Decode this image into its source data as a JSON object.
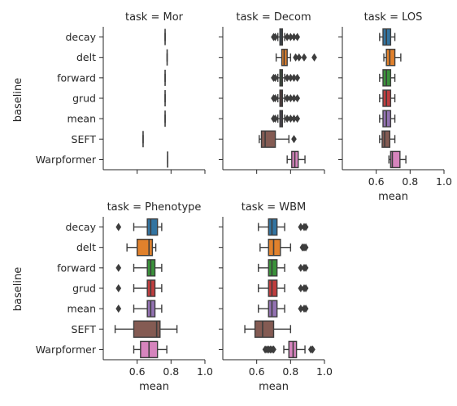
{
  "chart_data": {
    "type": "boxplot",
    "ylabel": "baseline",
    "xlabel": "mean",
    "xlim": [
      0.4,
      1.0
    ],
    "xticks": [
      "0.6",
      "0.8",
      "1.0"
    ],
    "categories": [
      "decay",
      "delt",
      "forward",
      "grud",
      "mean",
      "SEFT",
      "Warpformer"
    ],
    "colors": [
      "#3274a1",
      "#e1812c",
      "#3a923a",
      "#c03d3e",
      "#9372b2",
      "#845b53",
      "#d684bd"
    ],
    "panels": [
      {
        "title": "task = Mor",
        "show_xticks": false,
        "boxes": [
          {
            "q1": 0.765,
            "med": 0.765,
            "q3": 0.765,
            "wlo": 0.765,
            "whi": 0.765,
            "outliers": []
          },
          {
            "q1": 0.777,
            "med": 0.777,
            "q3": 0.777,
            "wlo": 0.777,
            "whi": 0.777,
            "outliers": []
          },
          {
            "q1": 0.765,
            "med": 0.765,
            "q3": 0.765,
            "wlo": 0.765,
            "whi": 0.765,
            "outliers": []
          },
          {
            "q1": 0.765,
            "med": 0.765,
            "q3": 0.765,
            "wlo": 0.765,
            "whi": 0.765,
            "outliers": []
          },
          {
            "q1": 0.765,
            "med": 0.765,
            "q3": 0.765,
            "wlo": 0.765,
            "whi": 0.765,
            "outliers": []
          },
          {
            "q1": 0.635,
            "med": 0.635,
            "q3": 0.635,
            "wlo": 0.635,
            "whi": 0.635,
            "outliers": []
          },
          {
            "q1": 0.78,
            "med": 0.78,
            "q3": 0.78,
            "wlo": 0.78,
            "whi": 0.78,
            "outliers": []
          }
        ]
      },
      {
        "title": "task = Decom",
        "show_xticks": false,
        "boxes": [
          {
            "q1": 0.737,
            "med": 0.745,
            "q3": 0.752,
            "wlo": 0.725,
            "whi": 0.765,
            "outliers": [
              0.7,
              0.71,
              0.78,
              0.8,
              0.82,
              0.84
            ]
          },
          {
            "q1": 0.748,
            "med": 0.762,
            "q3": 0.78,
            "wlo": 0.715,
            "whi": 0.8,
            "outliers": [
              0.83,
              0.85,
              0.88,
              0.94
            ]
          },
          {
            "q1": 0.737,
            "med": 0.745,
            "q3": 0.752,
            "wlo": 0.725,
            "whi": 0.765,
            "outliers": [
              0.7,
              0.71,
              0.78,
              0.8,
              0.82,
              0.84
            ]
          },
          {
            "q1": 0.737,
            "med": 0.745,
            "q3": 0.752,
            "wlo": 0.725,
            "whi": 0.765,
            "outliers": [
              0.7,
              0.71,
              0.78,
              0.8,
              0.82,
              0.84
            ]
          },
          {
            "q1": 0.737,
            "med": 0.745,
            "q3": 0.752,
            "wlo": 0.725,
            "whi": 0.765,
            "outliers": [
              0.7,
              0.71,
              0.78,
              0.8,
              0.82,
              0.84
            ]
          },
          {
            "q1": 0.628,
            "med": 0.65,
            "q3": 0.71,
            "wlo": 0.615,
            "whi": 0.79,
            "outliers": [
              0.82
            ]
          },
          {
            "q1": 0.807,
            "med": 0.825,
            "q3": 0.845,
            "wlo": 0.78,
            "whi": 0.885,
            "outliers": []
          }
        ]
      },
      {
        "title": "task = LOS",
        "show_xticks": true,
        "boxes": [
          {
            "q1": 0.64,
            "med": 0.66,
            "q3": 0.685,
            "wlo": 0.62,
            "whi": 0.71,
            "outliers": []
          },
          {
            "q1": 0.66,
            "med": 0.68,
            "q3": 0.71,
            "wlo": 0.645,
            "whi": 0.745,
            "outliers": []
          },
          {
            "q1": 0.64,
            "med": 0.66,
            "q3": 0.685,
            "wlo": 0.62,
            "whi": 0.71,
            "outliers": []
          },
          {
            "q1": 0.64,
            "med": 0.66,
            "q3": 0.685,
            "wlo": 0.62,
            "whi": 0.71,
            "outliers": []
          },
          {
            "q1": 0.64,
            "med": 0.66,
            "q3": 0.685,
            "wlo": 0.62,
            "whi": 0.71,
            "outliers": []
          },
          {
            "q1": 0.635,
            "med": 0.65,
            "q3": 0.68,
            "wlo": 0.62,
            "whi": 0.71,
            "outliers": []
          },
          {
            "q1": 0.685,
            "med": 0.695,
            "q3": 0.74,
            "wlo": 0.675,
            "whi": 0.775,
            "outliers": []
          }
        ]
      },
      {
        "title": "task = Phenotype",
        "show_xticks": true,
        "boxes": [
          {
            "q1": 0.66,
            "med": 0.68,
            "q3": 0.72,
            "wlo": 0.58,
            "whi": 0.745,
            "outliers": [
              0.49
            ]
          },
          {
            "q1": 0.6,
            "med": 0.67,
            "q3": 0.69,
            "wlo": 0.54,
            "whi": 0.71,
            "outliers": []
          },
          {
            "q1": 0.66,
            "med": 0.68,
            "q3": 0.705,
            "wlo": 0.58,
            "whi": 0.745,
            "outliers": [
              0.49
            ]
          },
          {
            "q1": 0.66,
            "med": 0.68,
            "q3": 0.705,
            "wlo": 0.58,
            "whi": 0.745,
            "outliers": [
              0.49
            ]
          },
          {
            "q1": 0.66,
            "med": 0.68,
            "q3": 0.705,
            "wlo": 0.58,
            "whi": 0.745,
            "outliers": [
              0.49
            ]
          },
          {
            "q1": 0.58,
            "med": 0.715,
            "q3": 0.735,
            "wlo": 0.47,
            "whi": 0.835,
            "outliers": []
          },
          {
            "q1": 0.62,
            "med": 0.67,
            "q3": 0.72,
            "wlo": 0.58,
            "whi": 0.775,
            "outliers": []
          }
        ]
      },
      {
        "title": "task = WBM",
        "show_xticks": true,
        "boxes": [
          {
            "q1": 0.67,
            "med": 0.69,
            "q3": 0.72,
            "wlo": 0.61,
            "whi": 0.765,
            "outliers": [
              0.86,
              0.88,
              0.89
            ]
          },
          {
            "q1": 0.67,
            "med": 0.7,
            "q3": 0.74,
            "wlo": 0.62,
            "whi": 0.8,
            "outliers": [
              0.87,
              0.88,
              0.89
            ]
          },
          {
            "q1": 0.67,
            "med": 0.69,
            "q3": 0.72,
            "wlo": 0.61,
            "whi": 0.765,
            "outliers": [
              0.86,
              0.88,
              0.89
            ]
          },
          {
            "q1": 0.67,
            "med": 0.69,
            "q3": 0.72,
            "wlo": 0.61,
            "whi": 0.765,
            "outliers": [
              0.86,
              0.88,
              0.89
            ]
          },
          {
            "q1": 0.67,
            "med": 0.69,
            "q3": 0.72,
            "wlo": 0.61,
            "whi": 0.765,
            "outliers": [
              0.86,
              0.88,
              0.89
            ]
          },
          {
            "q1": 0.59,
            "med": 0.635,
            "q3": 0.7,
            "wlo": 0.53,
            "whi": 0.8,
            "outliers": []
          },
          {
            "q1": 0.79,
            "med": 0.815,
            "q3": 0.835,
            "wlo": 0.76,
            "whi": 0.885,
            "outliers": [
              0.65,
              0.66,
              0.67,
              0.68,
              0.69,
              0.7,
              0.92,
              0.93
            ]
          }
        ]
      }
    ]
  }
}
